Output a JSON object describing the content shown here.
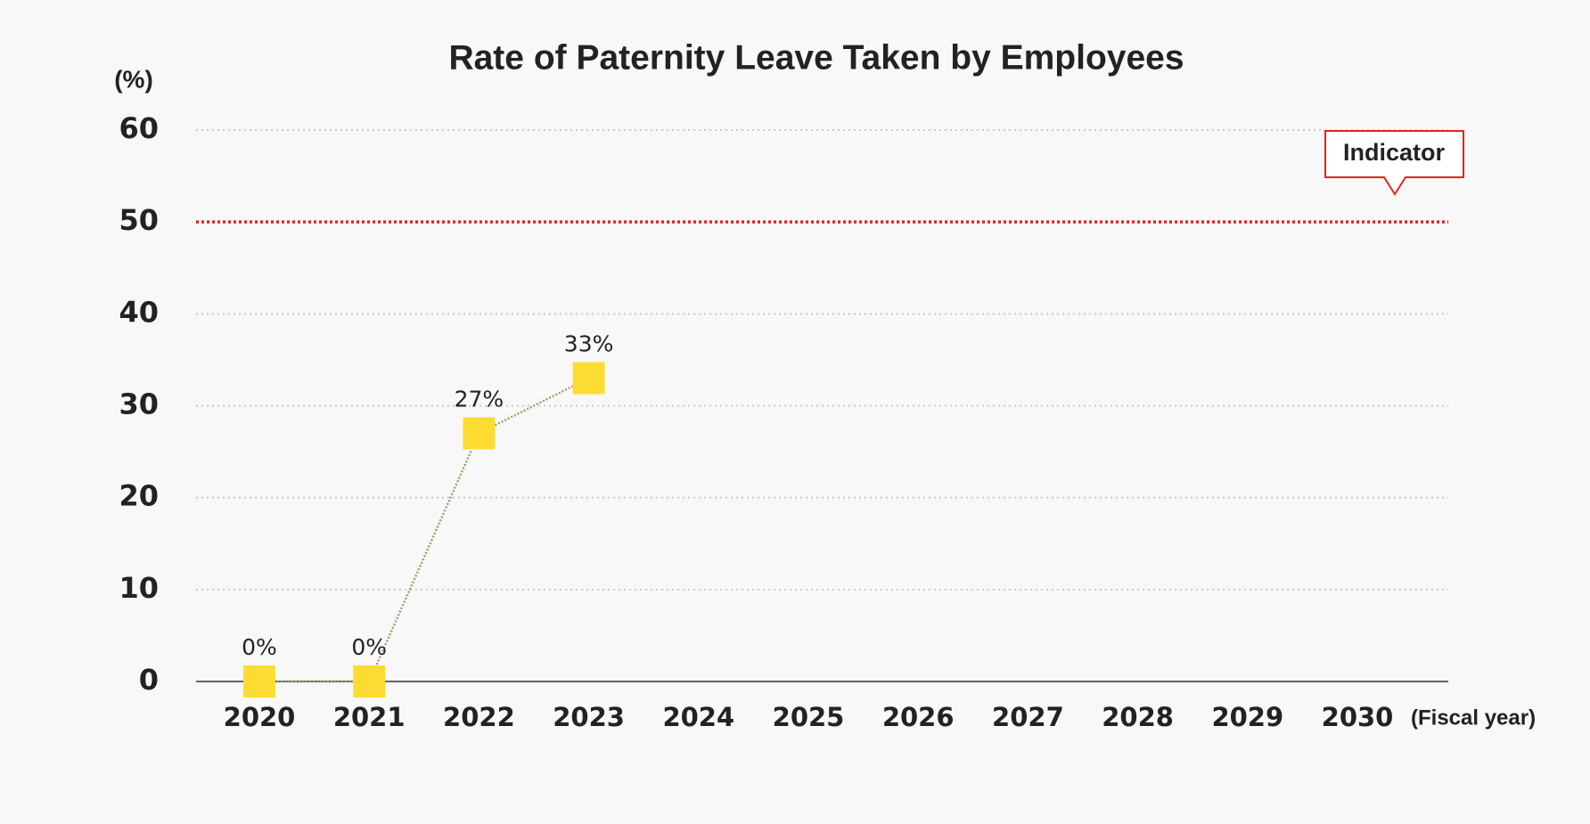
{
  "chart_data": {
    "type": "line",
    "title": "Rate of Paternity Leave Taken by Employees",
    "y_label": "(%)",
    "x_label": "(Fiscal year)",
    "categories": [
      "2020",
      "2021",
      "2022",
      "2023",
      "2024",
      "2025",
      "2026",
      "2027",
      "2028",
      "2029",
      "2030"
    ],
    "series": [
      {
        "color": "#fddc32",
        "line_color": "#a29d6c",
        "values": [
          0,
          0,
          27,
          33,
          null,
          null,
          null,
          null,
          null,
          null,
          null
        ],
        "value_labels": [
          "0%",
          "0%",
          "27%",
          "33%",
          null,
          null,
          null,
          null,
          null,
          null,
          null
        ]
      }
    ],
    "ylim": [
      0,
      60
    ],
    "yticks": [
      0,
      10,
      20,
      30,
      40,
      50,
      60
    ],
    "grid": true,
    "annotations": [
      {
        "label": "Indicator",
        "value": 50,
        "color": "#e8231f"
      }
    ]
  }
}
